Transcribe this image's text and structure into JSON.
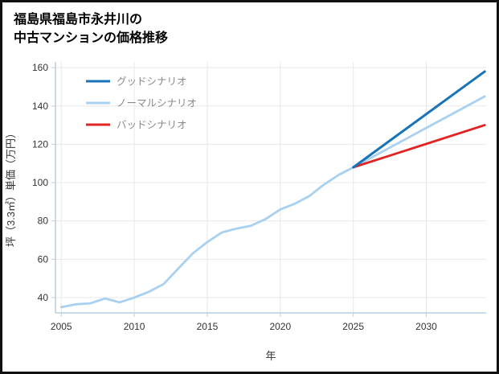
{
  "title": {
    "line1": "福島県福島市永井川の",
    "line2": "中古マンションの価格推移"
  },
  "chart_data": {
    "type": "line",
    "title": "福島県福島市永井川の中古マンションの価格推移",
    "xlabel": "年",
    "ylabel": "坪（3.3㎡）単価（万円）",
    "xlim": [
      2004.6,
      2034.1
    ],
    "ylim": [
      32,
      163
    ],
    "xticks": [
      2005,
      2010,
      2015,
      2020,
      2025,
      2030
    ],
    "yticks": [
      40,
      60,
      80,
      100,
      120,
      140,
      160
    ],
    "grid": true,
    "legend": {
      "position": "top-left",
      "items": [
        {
          "label": "グッドシナリオ",
          "color": "#1873b8"
        },
        {
          "label": "ノーマルシナリオ",
          "color": "#a8d0f0"
        },
        {
          "label": "バッドシナリオ",
          "color": "#e32222"
        }
      ]
    },
    "series": [
      {
        "id": "history-and-normal-scenario",
        "name": "ノーマルシナリオ",
        "color": "#a8d0f0",
        "width": 2.8,
        "x": [
          2005,
          2006,
          2007,
          2008,
          2009,
          2010,
          2011,
          2012,
          2013,
          2014,
          2015,
          2016,
          2017,
          2018,
          2019,
          2020,
          2021,
          2022,
          2023,
          2024,
          2025,
          2034
        ],
        "y": [
          35,
          36.5,
          37,
          39.5,
          37.5,
          40,
          43,
          47,
          55,
          63,
          69,
          74,
          76,
          77.5,
          81,
          86,
          89,
          93,
          99,
          104,
          108,
          145
        ]
      },
      {
        "id": "bad-scenario",
        "name": "バッドシナリオ",
        "color": "#e32222",
        "width": 2.8,
        "x": [
          2025,
          2034
        ],
        "y": [
          108,
          130
        ]
      },
      {
        "id": "good-scenario",
        "name": "グッドシナリオ",
        "color": "#1873b8",
        "width": 3,
        "x": [
          2025,
          2034
        ],
        "y": [
          108,
          158
        ]
      }
    ],
    "style": {
      "axis_color": "#b9cfe0",
      "grid_color": "#e8e8e8",
      "tick_label_color": "#333333",
      "legend_text_color": "#8a8a8a",
      "background": "#ffffff"
    }
  }
}
